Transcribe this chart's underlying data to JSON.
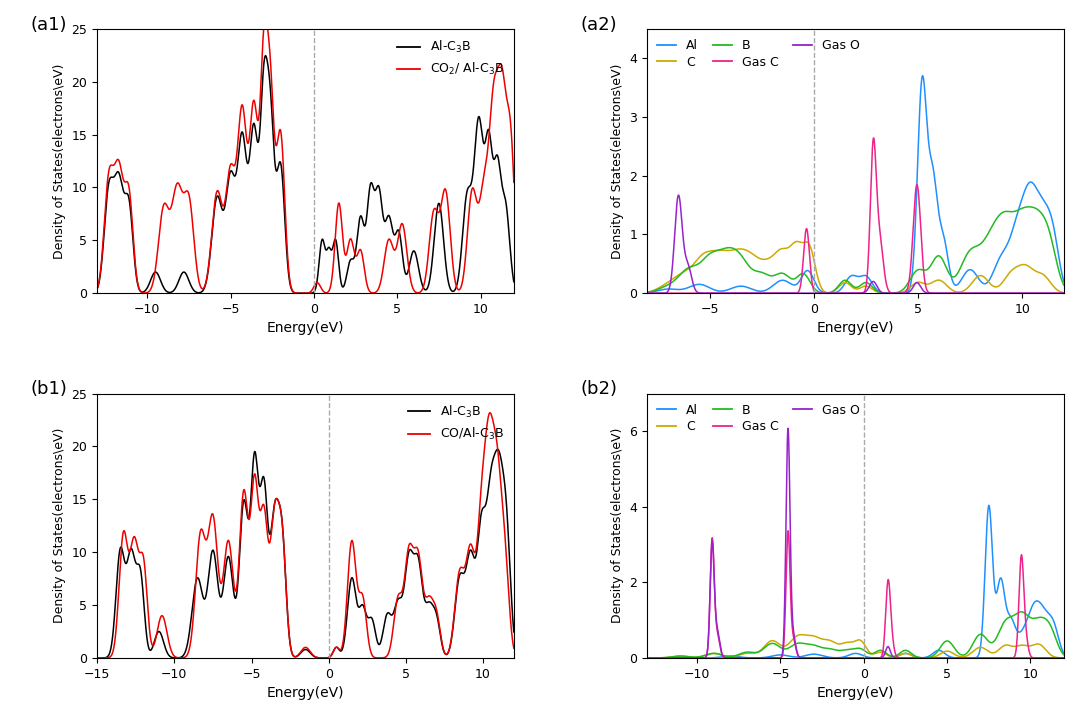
{
  "a1": {
    "xlim": [
      -13,
      12
    ],
    "ylim": [
      0,
      25
    ],
    "xlabel": "Energy(eV)",
    "ylabel": "Density of States(electrons\\eV)",
    "yticks": [
      0,
      5,
      10,
      15,
      20,
      25
    ],
    "xticks": [
      -10,
      -5,
      0,
      5,
      10
    ]
  },
  "a2": {
    "xlim": [
      -8,
      12
    ],
    "ylim": [
      0,
      4.5
    ],
    "xlabel": "Energy(eV)",
    "ylabel": "Density of States(electrons\\eV)",
    "yticks": [
      0,
      1,
      2,
      3,
      4
    ],
    "xticks": [
      -5,
      0,
      5,
      10
    ]
  },
  "b1": {
    "xlim": [
      -15,
      12
    ],
    "ylim": [
      0,
      25
    ],
    "xlabel": "Energy(eV)",
    "ylabel": "Density of States(electrons\\eV)",
    "yticks": [
      0,
      5,
      10,
      15,
      20,
      25
    ],
    "xticks": [
      -15,
      -10,
      -5,
      0,
      5,
      10
    ]
  },
  "b2": {
    "xlim": [
      -13,
      12
    ],
    "ylim": [
      0,
      7
    ],
    "xlabel": "Energy(eV)",
    "ylabel": "Density of States(electrons\\eV)",
    "yticks": [
      0,
      2,
      4,
      6
    ],
    "xticks": [
      -10,
      -5,
      0,
      5,
      10
    ]
  },
  "colors": {
    "black": "#000000",
    "red": "#ee0000",
    "blue": "#1e90ff",
    "yellow": "#ccaa00",
    "green": "#22bb22",
    "magenta": "#ee2288",
    "purple": "#9922cc"
  }
}
